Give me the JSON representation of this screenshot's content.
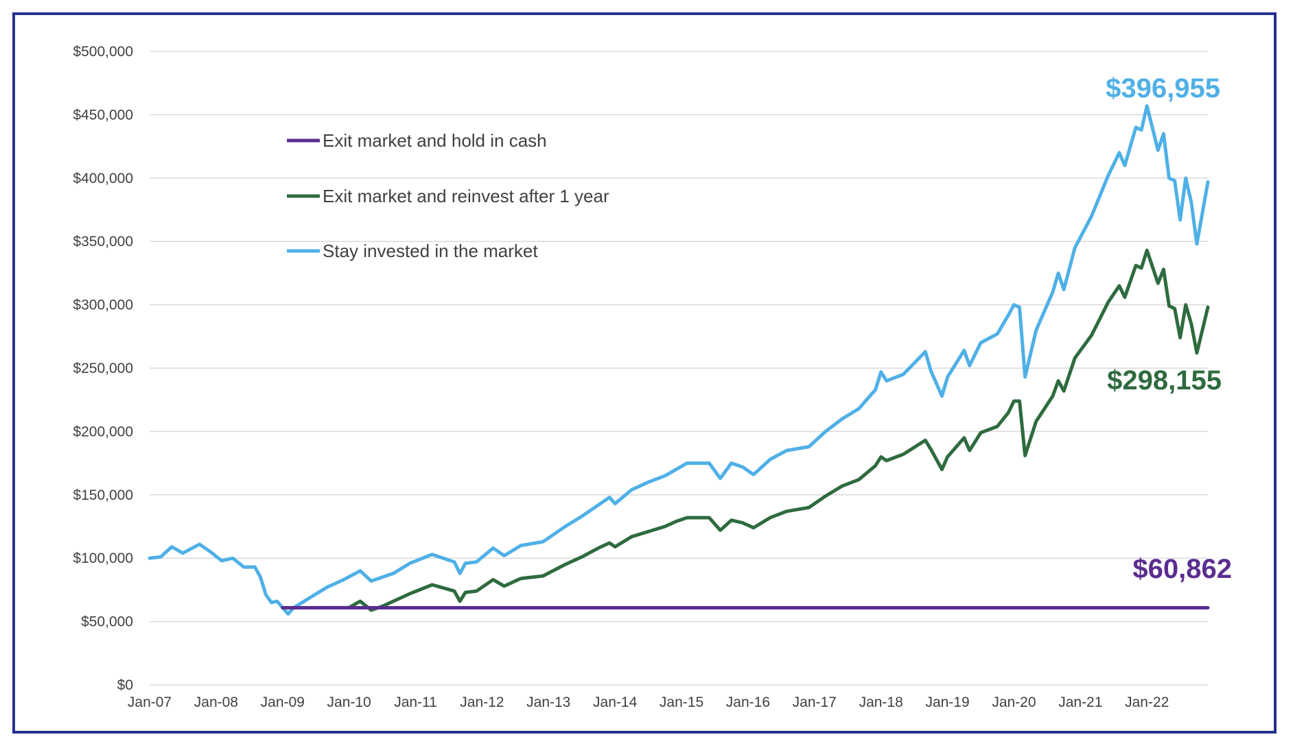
{
  "chart_data": {
    "type": "line",
    "title": "",
    "xlabel": "",
    "ylabel": "",
    "x_ticks": [
      "Jan-07",
      "Jan-08",
      "Jan-09",
      "Jan-10",
      "Jan-11",
      "Jan-12",
      "Jan-13",
      "Jan-14",
      "Jan-15",
      "Jan-16",
      "Jan-17",
      "Jan-18",
      "Jan-19",
      "Jan-20",
      "Jan-21",
      "Jan-22"
    ],
    "x_range": [
      "2007-01",
      "2022-12"
    ],
    "y_ticks": [
      "$0",
      "$50,000",
      "$100,000",
      "$150,000",
      "$200,000",
      "$250,000",
      "$300,000",
      "$350,000",
      "$400,000",
      "$450,000",
      "$500,000"
    ],
    "ylim": [
      0,
      500000
    ],
    "grid": "horizontal",
    "legend_position": "top-left",
    "colors": {
      "cash": "#5b2d90",
      "reinvest": "#2e6b3f",
      "stay": "#4fb0e6"
    },
    "series": [
      {
        "name": "Exit market and hold in cash",
        "color": "#5b2d90",
        "end_label": "$60,862",
        "points": [
          [
            "2009-01",
            60862
          ],
          [
            "2022-12",
            60862
          ]
        ]
      },
      {
        "name": "Exit market and reinvest after 1 year",
        "color": "#2e6b3f",
        "end_label": "$298,155",
        "points": [
          [
            "2009-01",
            60862
          ],
          [
            "2009-06",
            60862
          ],
          [
            "2010-01",
            61000
          ],
          [
            "2010-03",
            66000
          ],
          [
            "2010-05",
            59000
          ],
          [
            "2010-07",
            62000
          ],
          [
            "2010-09",
            66000
          ],
          [
            "2010-12",
            72000
          ],
          [
            "2011-04",
            79000
          ],
          [
            "2011-08",
            74000
          ],
          [
            "2011-09",
            66000
          ],
          [
            "2011-10",
            73000
          ],
          [
            "2011-12",
            74000
          ],
          [
            "2012-03",
            83000
          ],
          [
            "2012-05",
            78000
          ],
          [
            "2012-08",
            84000
          ],
          [
            "2012-12",
            86000
          ],
          [
            "2013-04",
            95000
          ],
          [
            "2013-07",
            101000
          ],
          [
            "2013-10",
            108000
          ],
          [
            "2013-12",
            112000
          ],
          [
            "2014-01",
            109000
          ],
          [
            "2014-04",
            117000
          ],
          [
            "2014-07",
            121000
          ],
          [
            "2014-10",
            125000
          ],
          [
            "2014-12",
            129000
          ],
          [
            "2015-02",
            132000
          ],
          [
            "2015-06",
            132000
          ],
          [
            "2015-08",
            122000
          ],
          [
            "2015-10",
            130000
          ],
          [
            "2015-12",
            128000
          ],
          [
            "2016-02",
            124000
          ],
          [
            "2016-05",
            132000
          ],
          [
            "2016-08",
            137000
          ],
          [
            "2016-12",
            140000
          ],
          [
            "2017-03",
            149000
          ],
          [
            "2017-06",
            157000
          ],
          [
            "2017-09",
            162000
          ],
          [
            "2017-12",
            173000
          ],
          [
            "2018-01",
            180000
          ],
          [
            "2018-02",
            177000
          ],
          [
            "2018-05",
            182000
          ],
          [
            "2018-09",
            193000
          ],
          [
            "2018-10",
            186000
          ],
          [
            "2018-12",
            170000
          ],
          [
            "2019-01",
            180000
          ],
          [
            "2019-04",
            195000
          ],
          [
            "2019-05",
            185000
          ],
          [
            "2019-07",
            199000
          ],
          [
            "2019-10",
            204000
          ],
          [
            "2019-12",
            215000
          ],
          [
            "2020-01",
            224000
          ],
          [
            "2020-02",
            224000
          ],
          [
            "2020-03",
            181000
          ],
          [
            "2020-05",
            208000
          ],
          [
            "2020-08",
            228000
          ],
          [
            "2020-09",
            240000
          ],
          [
            "2020-10",
            232000
          ],
          [
            "2020-12",
            258000
          ],
          [
            "2021-03",
            276000
          ],
          [
            "2021-06",
            302000
          ],
          [
            "2021-08",
            315000
          ],
          [
            "2021-09",
            306000
          ],
          [
            "2021-11",
            331000
          ],
          [
            "2021-12",
            329000
          ],
          [
            "2022-01",
            343000
          ],
          [
            "2022-03",
            317000
          ],
          [
            "2022-04",
            328000
          ],
          [
            "2022-05",
            299000
          ],
          [
            "2022-06",
            297000
          ],
          [
            "2022-07",
            274000
          ],
          [
            "2022-08",
            300000
          ],
          [
            "2022-09",
            285000
          ],
          [
            "2022-10",
            262000
          ],
          [
            "2022-12",
            298155
          ]
        ]
      },
      {
        "name": "Stay invested in the market",
        "color": "#4fb0e6",
        "end_label": "$396,955",
        "points": [
          [
            "2007-01",
            100000
          ],
          [
            "2007-03",
            101000
          ],
          [
            "2007-05",
            109000
          ],
          [
            "2007-07",
            104000
          ],
          [
            "2007-10",
            111000
          ],
          [
            "2007-12",
            105000
          ],
          [
            "2008-02",
            98000
          ],
          [
            "2008-04",
            100000
          ],
          [
            "2008-06",
            93000
          ],
          [
            "2008-08",
            93000
          ],
          [
            "2008-09",
            85000
          ],
          [
            "2008-10",
            71000
          ],
          [
            "2008-11",
            65000
          ],
          [
            "2008-12",
            66000
          ],
          [
            "2009-02",
            56000
          ],
          [
            "2009-03",
            60862
          ],
          [
            "2009-06",
            69000
          ],
          [
            "2009-09",
            77000
          ],
          [
            "2009-12",
            83000
          ],
          [
            "2010-03",
            90000
          ],
          [
            "2010-05",
            82000
          ],
          [
            "2010-07",
            85000
          ],
          [
            "2010-09",
            88000
          ],
          [
            "2010-12",
            96000
          ],
          [
            "2011-04",
            103000
          ],
          [
            "2011-08",
            97000
          ],
          [
            "2011-09",
            88000
          ],
          [
            "2011-10",
            96000
          ],
          [
            "2011-12",
            97000
          ],
          [
            "2012-03",
            108000
          ],
          [
            "2012-05",
            102000
          ],
          [
            "2012-08",
            110000
          ],
          [
            "2012-12",
            113000
          ],
          [
            "2013-04",
            125000
          ],
          [
            "2013-07",
            133000
          ],
          [
            "2013-10",
            142000
          ],
          [
            "2013-12",
            148000
          ],
          [
            "2014-01",
            143000
          ],
          [
            "2014-04",
            154000
          ],
          [
            "2014-07",
            160000
          ],
          [
            "2014-10",
            165000
          ],
          [
            "2014-12",
            170000
          ],
          [
            "2015-02",
            175000
          ],
          [
            "2015-06",
            175000
          ],
          [
            "2015-08",
            163000
          ],
          [
            "2015-10",
            175000
          ],
          [
            "2015-12",
            172000
          ],
          [
            "2016-02",
            166000
          ],
          [
            "2016-05",
            178000
          ],
          [
            "2016-08",
            185000
          ],
          [
            "2016-12",
            188000
          ],
          [
            "2017-03",
            200000
          ],
          [
            "2017-06",
            210000
          ],
          [
            "2017-09",
            218000
          ],
          [
            "2017-12",
            233000
          ],
          [
            "2018-01",
            247000
          ],
          [
            "2018-02",
            240000
          ],
          [
            "2018-05",
            245000
          ],
          [
            "2018-09",
            263000
          ],
          [
            "2018-10",
            248000
          ],
          [
            "2018-12",
            228000
          ],
          [
            "2019-01",
            243000
          ],
          [
            "2019-04",
            264000
          ],
          [
            "2019-05",
            252000
          ],
          [
            "2019-07",
            270000
          ],
          [
            "2019-10",
            277000
          ],
          [
            "2019-12",
            292000
          ],
          [
            "2020-01",
            300000
          ],
          [
            "2020-02",
            298000
          ],
          [
            "2020-03",
            243000
          ],
          [
            "2020-05",
            280000
          ],
          [
            "2020-08",
            310000
          ],
          [
            "2020-09",
            325000
          ],
          [
            "2020-10",
            312000
          ],
          [
            "2020-12",
            345000
          ],
          [
            "2021-03",
            370000
          ],
          [
            "2021-06",
            402000
          ],
          [
            "2021-08",
            420000
          ],
          [
            "2021-09",
            410000
          ],
          [
            "2021-11",
            440000
          ],
          [
            "2021-12",
            438000
          ],
          [
            "2022-01",
            457000
          ],
          [
            "2022-03",
            422000
          ],
          [
            "2022-04",
            435000
          ],
          [
            "2022-05",
            400000
          ],
          [
            "2022-06",
            398000
          ],
          [
            "2022-07",
            367000
          ],
          [
            "2022-08",
            400000
          ],
          [
            "2022-09",
            381000
          ],
          [
            "2022-10",
            348000
          ],
          [
            "2022-12",
            396955
          ]
        ]
      }
    ]
  }
}
